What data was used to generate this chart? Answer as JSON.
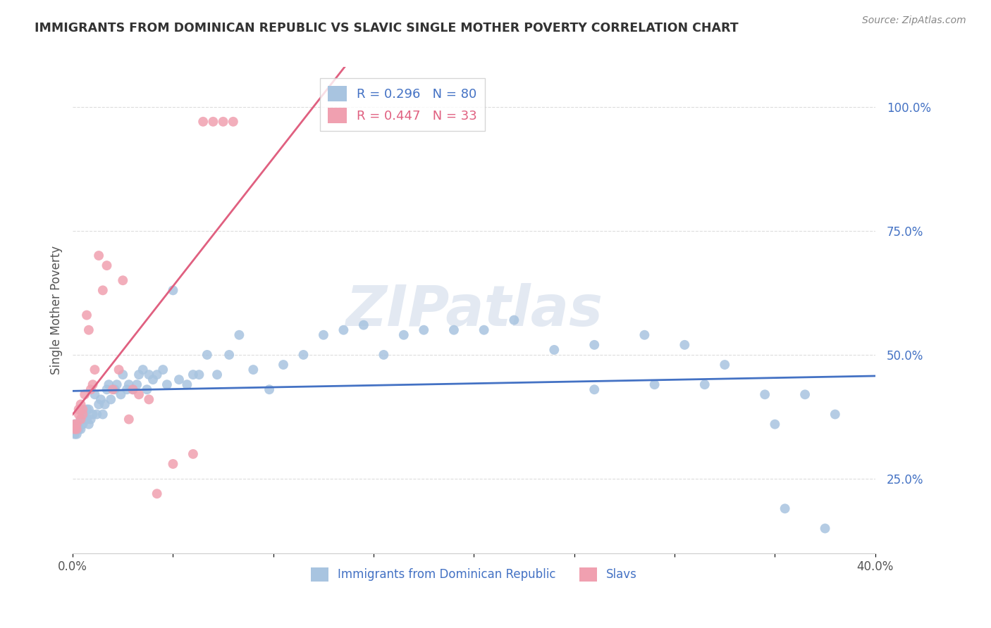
{
  "title": "IMMIGRANTS FROM DOMINICAN REPUBLIC VS SLAVIC SINGLE MOTHER POVERTY CORRELATION CHART",
  "source": "Source: ZipAtlas.com",
  "ylabel": "Single Mother Poverty",
  "xlim": [
    0.0,
    0.4
  ],
  "ylim": [
    0.1,
    1.08
  ],
  "xticks": [
    0.0,
    0.05,
    0.1,
    0.15,
    0.2,
    0.25,
    0.3,
    0.35,
    0.4
  ],
  "xtick_labels": [
    "0.0%",
    "",
    "",
    "",
    "",
    "",
    "",
    "",
    "40.0%"
  ],
  "yticks_right": [
    0.25,
    0.5,
    0.75,
    1.0
  ],
  "ytick_labels_right": [
    "25.0%",
    "50.0%",
    "75.0%",
    "100.0%"
  ],
  "legend_R1": "0.296",
  "legend_N1": "80",
  "legend_R2": "0.447",
  "legend_N2": "33",
  "legend_label1": "Immigrants from Dominican Republic",
  "legend_label2": "Slavs",
  "color_blue": "#a8c4e0",
  "color_pink": "#f0a0b0",
  "line_color_blue": "#4472c4",
  "line_color_pink": "#e06080",
  "watermark": "ZIPatlas",
  "watermark_color": "#ccd8e8",
  "blue_x": [
    0.001,
    0.001,
    0.002,
    0.002,
    0.003,
    0.003,
    0.003,
    0.004,
    0.004,
    0.005,
    0.005,
    0.006,
    0.006,
    0.007,
    0.007,
    0.008,
    0.008,
    0.009,
    0.01,
    0.011,
    0.012,
    0.013,
    0.014,
    0.015,
    0.016,
    0.017,
    0.018,
    0.019,
    0.021,
    0.022,
    0.024,
    0.025,
    0.027,
    0.028,
    0.03,
    0.032,
    0.033,
    0.035,
    0.037,
    0.038,
    0.04,
    0.042,
    0.045,
    0.047,
    0.05,
    0.053,
    0.057,
    0.06,
    0.063,
    0.067,
    0.072,
    0.078,
    0.083,
    0.09,
    0.098,
    0.105,
    0.115,
    0.125,
    0.135,
    0.145,
    0.155,
    0.165,
    0.175,
    0.19,
    0.205,
    0.22,
    0.24,
    0.26,
    0.285,
    0.305,
    0.325,
    0.345,
    0.26,
    0.29,
    0.315,
    0.35,
    0.365,
    0.38,
    0.355,
    0.375
  ],
  "blue_y": [
    0.36,
    0.34,
    0.35,
    0.34,
    0.35,
    0.36,
    0.36,
    0.37,
    0.35,
    0.37,
    0.36,
    0.37,
    0.38,
    0.37,
    0.39,
    0.36,
    0.39,
    0.37,
    0.38,
    0.42,
    0.38,
    0.4,
    0.41,
    0.38,
    0.4,
    0.43,
    0.44,
    0.41,
    0.43,
    0.44,
    0.42,
    0.46,
    0.43,
    0.44,
    0.43,
    0.44,
    0.46,
    0.47,
    0.43,
    0.46,
    0.45,
    0.46,
    0.47,
    0.44,
    0.63,
    0.45,
    0.44,
    0.46,
    0.46,
    0.5,
    0.46,
    0.5,
    0.54,
    0.47,
    0.43,
    0.48,
    0.5,
    0.54,
    0.55,
    0.56,
    0.5,
    0.54,
    0.55,
    0.55,
    0.55,
    0.57,
    0.51,
    0.52,
    0.54,
    0.52,
    0.48,
    0.42,
    0.43,
    0.44,
    0.44,
    0.36,
    0.42,
    0.38,
    0.19,
    0.15
  ],
  "pink_x": [
    0.001,
    0.001,
    0.002,
    0.002,
    0.003,
    0.003,
    0.004,
    0.004,
    0.005,
    0.005,
    0.006,
    0.007,
    0.008,
    0.009,
    0.01,
    0.011,
    0.013,
    0.015,
    0.017,
    0.02,
    0.023,
    0.025,
    0.028,
    0.03,
    0.033,
    0.038,
    0.042,
    0.05,
    0.06,
    0.065,
    0.07,
    0.075,
    0.08
  ],
  "pink_y": [
    0.35,
    0.36,
    0.35,
    0.36,
    0.38,
    0.39,
    0.37,
    0.4,
    0.38,
    0.39,
    0.42,
    0.58,
    0.55,
    0.43,
    0.44,
    0.47,
    0.7,
    0.63,
    0.68,
    0.43,
    0.47,
    0.65,
    0.37,
    0.43,
    0.42,
    0.41,
    0.22,
    0.28,
    0.3,
    0.97,
    0.97,
    0.97,
    0.97
  ]
}
